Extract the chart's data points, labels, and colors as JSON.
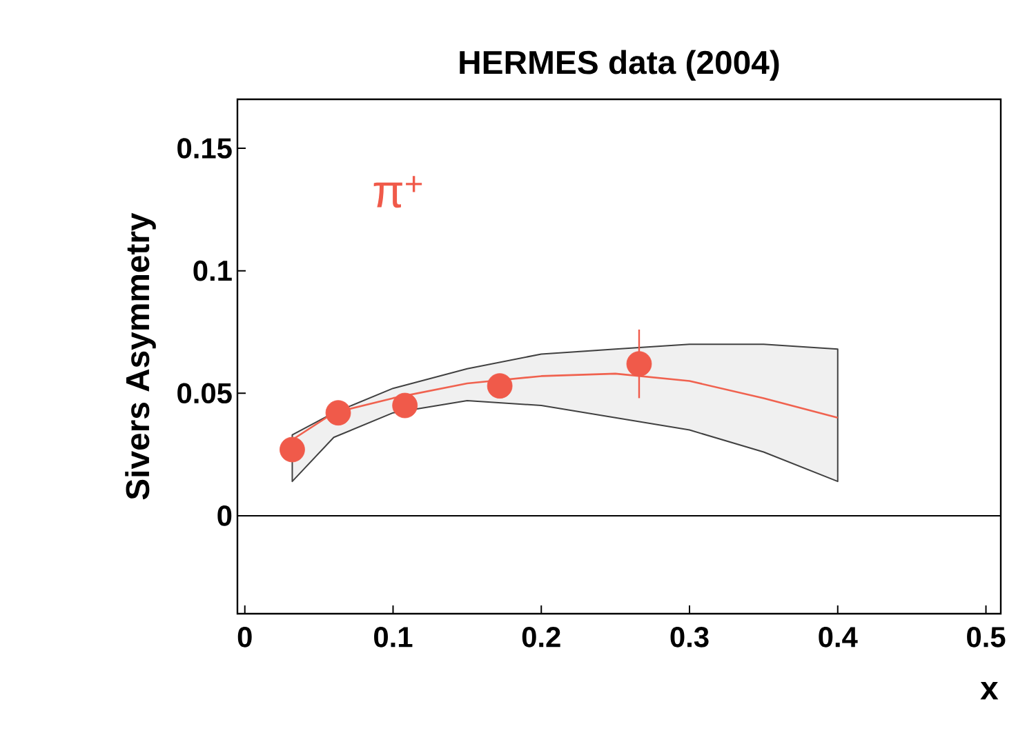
{
  "chart_data": {
    "type": "scatter",
    "title": "HERMES data  (2004)",
    "xlabel": "x",
    "ylabel": "Sivers Asymmetry",
    "xlim": [
      -0.005,
      0.51
    ],
    "ylim": [
      -0.04,
      0.17
    ],
    "xticks": [
      0,
      0.1,
      0.2,
      0.3,
      0.4,
      0.5
    ],
    "yticks": [
      0,
      0.05,
      0.1,
      0.15
    ],
    "annotations": [
      "π$^{+}$"
    ],
    "ref_lines": [
      {
        "axis": "y",
        "value": 0,
        "color": "#000000"
      }
    ],
    "series": [
      {
        "type": "line",
        "color": "#f0624f",
        "marker": "none",
        "x": [
          0.032,
          0.06,
          0.1,
          0.15,
          0.2,
          0.25,
          0.3,
          0.35,
          0.4
        ],
        "values": [
          0.031,
          0.042,
          0.048,
          0.054,
          0.057,
          0.058,
          0.055,
          0.048,
          0.04
        ],
        "lower": [
          0.014,
          0.032,
          0.042,
          0.047,
          0.045,
          0.04,
          0.035,
          0.026,
          0.014
        ],
        "upper": [
          0.033,
          0.042,
          0.052,
          0.06,
          0.066,
          0.068,
          0.07,
          0.07,
          0.068
        ]
      },
      {
        "color": "#f05a4a",
        "marker": "circle",
        "x": [
          0.032,
          0.063,
          0.108,
          0.172,
          0.266
        ],
        "values": [
          0.027,
          0.042,
          0.045,
          0.053,
          0.062
        ],
        "errors": [
          0.003,
          0.003,
          0.003,
          0.004,
          0.014
        ]
      }
    ],
    "grid": false
  }
}
